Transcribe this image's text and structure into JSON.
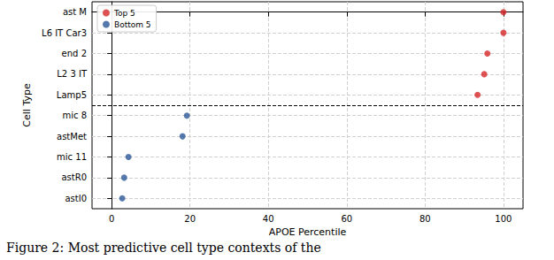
{
  "chart_data": {
    "type": "scatter",
    "caption": "Figure 2: Most predictive cell type contexts of the",
    "xlabel": "APOE Percentile",
    "ylabel": "Cell Type",
    "categories": [
      "ast M",
      "L6 IT Car3",
      "end 2",
      "L2 3 IT",
      "Lamp5",
      "mic 8",
      "astMet",
      "mic 11",
      "astR0",
      "astI0"
    ],
    "series": [
      {
        "name": "Top 5",
        "color": "#d62728",
        "values": [
          100,
          100,
          95.9,
          95.1,
          93.4,
          null,
          null,
          null,
          null,
          null
        ]
      },
      {
        "name": "Bottom 5",
        "color": "#2b5797",
        "values": [
          null,
          null,
          null,
          null,
          null,
          19.2,
          18.1,
          4.3,
          3.2,
          2.7
        ]
      }
    ],
    "xlim": [
      -5,
      105
    ],
    "xticks": [
      0,
      20,
      40,
      60,
      80,
      100
    ],
    "grid": true,
    "legend": "upper left"
  }
}
